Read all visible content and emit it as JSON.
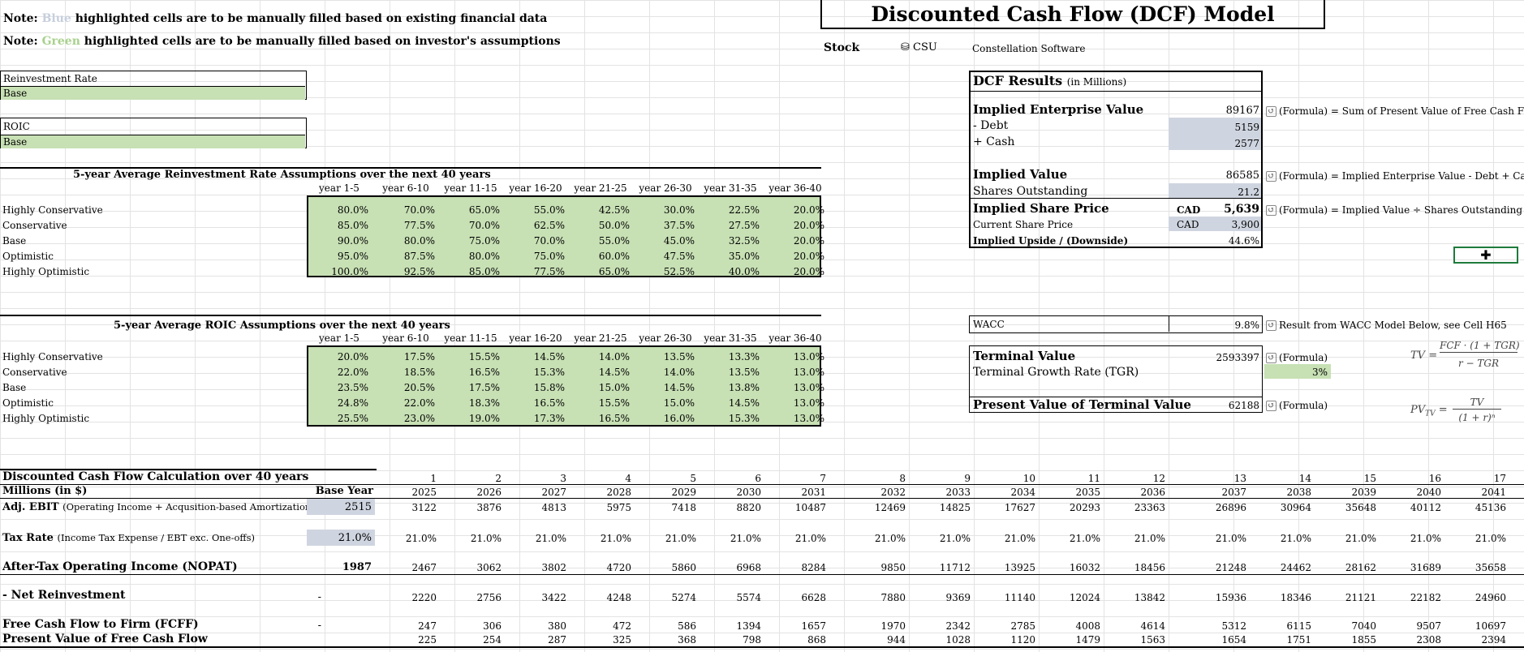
{
  "notes": {
    "note_prefix": "Note:",
    "blue_word": "Blue",
    "blue_rest": "highlighted cells are to be manually filled based on existing financial data",
    "green_word": "Green",
    "green_rest": "highlighted cells are to be manually filled based on investor's assumptions"
  },
  "model_title": "Discounted Cash Flow (DCF) Model",
  "stock": {
    "label": "Stock",
    "ticker": "CSU",
    "name": "Constellation Software"
  },
  "selectors": {
    "reinvest_label": "Reinvestment Rate",
    "reinvest_value": "Base",
    "roic_label": "ROIC",
    "roic_value": "Base"
  },
  "reinvest_table": {
    "title": "5-year Average Reinvestment Rate Assumptions over the next 40 years",
    "periods": [
      "year 1-5",
      "year 6-10",
      "year 11-15",
      "year 16-20",
      "year 21-25",
      "year 26-30",
      "year 31-35",
      "year 36-40"
    ],
    "rows": [
      {
        "name": "Highly Conservative",
        "values": [
          "80.0%",
          "70.0%",
          "65.0%",
          "55.0%",
          "42.5%",
          "30.0%",
          "22.5%",
          "20.0%"
        ]
      },
      {
        "name": "Conservative",
        "values": [
          "85.0%",
          "77.5%",
          "70.0%",
          "62.5%",
          "50.0%",
          "37.5%",
          "27.5%",
          "20.0%"
        ]
      },
      {
        "name": "Base",
        "values": [
          "90.0%",
          "80.0%",
          "75.0%",
          "70.0%",
          "55.0%",
          "45.0%",
          "32.5%",
          "20.0%"
        ]
      },
      {
        "name": "Optimistic",
        "values": [
          "95.0%",
          "87.5%",
          "80.0%",
          "75.0%",
          "60.0%",
          "47.5%",
          "35.0%",
          "20.0%"
        ]
      },
      {
        "name": "Highly Optimistic",
        "values": [
          "100.0%",
          "92.5%",
          "85.0%",
          "77.5%",
          "65.0%",
          "52.5%",
          "40.0%",
          "20.0%"
        ]
      }
    ]
  },
  "roic_table": {
    "title": "5-year Average ROIC Assumptions over the next 40 years",
    "periods": [
      "year 1-5",
      "year 6-10",
      "year 11-15",
      "year 16-20",
      "year 21-25",
      "year 26-30",
      "year 31-35",
      "year 36-40"
    ],
    "rows": [
      {
        "name": "Highly Conservative",
        "values": [
          "20.0%",
          "17.5%",
          "15.5%",
          "14.5%",
          "14.0%",
          "13.5%",
          "13.3%",
          "13.0%"
        ]
      },
      {
        "name": "Conservative",
        "values": [
          "22.0%",
          "18.5%",
          "16.5%",
          "15.3%",
          "14.5%",
          "14.0%",
          "13.5%",
          "13.0%"
        ]
      },
      {
        "name": "Base",
        "values": [
          "23.5%",
          "20.5%",
          "17.5%",
          "15.8%",
          "15.0%",
          "14.5%",
          "13.8%",
          "13.0%"
        ]
      },
      {
        "name": "Optimistic",
        "values": [
          "24.8%",
          "22.0%",
          "18.3%",
          "16.5%",
          "15.5%",
          "15.0%",
          "14.5%",
          "13.0%"
        ]
      },
      {
        "name": "Highly Optimistic",
        "values": [
          "25.5%",
          "23.0%",
          "19.0%",
          "17.3%",
          "16.5%",
          "16.0%",
          "15.3%",
          "13.0%"
        ]
      }
    ]
  },
  "results": {
    "title": "DCF Results",
    "title_unit": "(in Millions)",
    "iev_label": "Implied Enterprise Value",
    "iev_value": "89167",
    "iev_note": "(Formula) = Sum of Present Value of Free Cash Flow",
    "debt_label": "- Debt",
    "debt_value": "5159",
    "cash_label": "+ Cash",
    "cash_value": "2577",
    "iv_label": "Implied Value",
    "iv_value": "86585",
    "iv_note": "(Formula) = Implied Enterprise Value - Debt + Cash",
    "shares_label": "Shares Outstanding",
    "shares_value": "21.2",
    "isp_label": "Implied Share Price",
    "isp_cur": "CAD",
    "isp_value": "5,639",
    "isp_note": "(Formula) = Implied Value ÷ Shares Outstanding x",
    "csp_label": "Current Share Price",
    "csp_cur": "CAD",
    "csp_value": "3,900",
    "upside_label": "Implied Upside / (Downside)",
    "upside_value": "44.6%"
  },
  "wacc": {
    "label": "WACC",
    "value": "9.8%",
    "note": "Result from WACC Model Below, see Cell H65"
  },
  "terminal": {
    "tv_label": "Terminal Value",
    "tv_value": "2593397",
    "tv_note": "(Formula)",
    "tgr_label": "Terminal Growth Rate (TGR)",
    "tgr_value": "3%",
    "pvtv_label": "Present Value of Terminal Value",
    "pvtv_value": "62188",
    "pvtv_note": "(Formula)",
    "tv_formula_lhs": "TV =",
    "tv_formula_num": "FCF · (1 + TGR)",
    "tv_formula_den": "r − TGR",
    "pv_formula_lhs": "PV",
    "pv_formula_sub": "TV",
    "pv_formula_eq": "=",
    "pv_formula_num": "TV",
    "pv_formula_den": "(1 + r)ⁿ"
  },
  "dcf": {
    "title": "Discounted Cash Flow Calculation over 40 years",
    "units_label": "Millions (in $)",
    "base_year_label": "Base Year",
    "period_numbers": [
      "1",
      "2",
      "3",
      "4",
      "5",
      "6",
      "7",
      "8",
      "9",
      "10",
      "11",
      "12",
      "13",
      "14",
      "15",
      "16",
      "17"
    ],
    "years": [
      "2025",
      "2026",
      "2027",
      "2028",
      "2029",
      "2030",
      "2031",
      "2032",
      "2033",
      "2034",
      "2035",
      "2036",
      "2037",
      "2038",
      "2039",
      "2040",
      "2041"
    ],
    "ebit_label": "Adj. EBIT",
    "ebit_sub": "(Operating Income + Acqusition-based Amortization)",
    "ebit_base": "2515",
    "ebit": [
      "3122",
      "3876",
      "4813",
      "5975",
      "7418",
      "8820",
      "10487",
      "12469",
      "14825",
      "17627",
      "20293",
      "23363",
      "26896",
      "30964",
      "35648",
      "40112",
      "45136"
    ],
    "tax_label": "Tax Rate",
    "tax_sub": "(Income Tax Expense / EBT exc. One-offs)",
    "tax_base": "21.0%",
    "tax": [
      "21.0%",
      "21.0%",
      "21.0%",
      "21.0%",
      "21.0%",
      "21.0%",
      "21.0%",
      "21.0%",
      "21.0%",
      "21.0%",
      "21.0%",
      "21.0%",
      "21.0%",
      "21.0%",
      "21.0%",
      "21.0%",
      "21.0%"
    ],
    "nopat_label": "After-Tax Operating Income (NOPAT)",
    "nopat_base": "1987",
    "nopat": [
      "2467",
      "3062",
      "3802",
      "4720",
      "5860",
      "6968",
      "8284",
      "9850",
      "11712",
      "13925",
      "16032",
      "18456",
      "21248",
      "24462",
      "28162",
      "31689",
      "35658"
    ],
    "reinv_label": "- Net Reinvestment",
    "reinv_base": "-",
    "reinv": [
      "2220",
      "2756",
      "3422",
      "4248",
      "5274",
      "5574",
      "6628",
      "7880",
      "9369",
      "11140",
      "12024",
      "13842",
      "15936",
      "18346",
      "21121",
      "22182",
      "24960"
    ],
    "fcff_label": "Free Cash Flow to Firm (FCFF)",
    "fcff_base": "-",
    "fcff": [
      "247",
      "306",
      "380",
      "472",
      "586",
      "1394",
      "1657",
      "1970",
      "2342",
      "2785",
      "4008",
      "4614",
      "5312",
      "6115",
      "7040",
      "9507",
      "10697"
    ],
    "pv_label": "Present Value of Free Cash Flow",
    "pv": [
      "225",
      "254",
      "287",
      "325",
      "368",
      "798",
      "868",
      "944",
      "1028",
      "1120",
      "1479",
      "1563",
      "1654",
      "1751",
      "1855",
      "2308",
      "2394"
    ]
  }
}
